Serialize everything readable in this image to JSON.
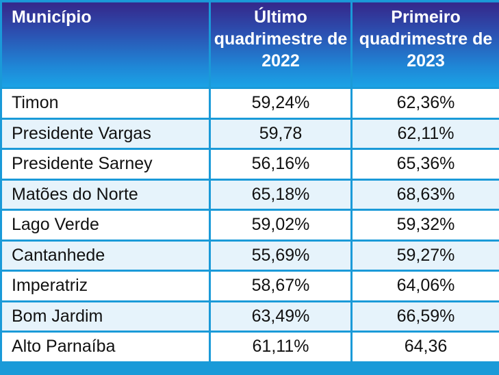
{
  "headers": {
    "municipio": "Município",
    "col1": "Último quadrimestre de 2022",
    "col2": "Primeiro quadrimestre de 2023"
  },
  "rows": [
    {
      "municipio": "Timon",
      "q2022": "59,24%",
      "q2023": "62,36%"
    },
    {
      "municipio": "Presidente Vargas",
      "q2022": "59,78",
      "q2023": "62,11%"
    },
    {
      "municipio": "Presidente Sarney",
      "q2022": "56,16%",
      "q2023": "65,36%"
    },
    {
      "municipio": "Matões do Norte",
      "q2022": "65,18%",
      "q2023": "68,63%"
    },
    {
      "municipio": "Lago Verde",
      "q2022": "59,02%",
      "q2023": "59,32%"
    },
    {
      "municipio": "Cantanhede",
      "q2022": "55,69%",
      "q2023": "59,27%"
    },
    {
      "municipio": "Imperatriz",
      "q2022": "58,67%",
      "q2023": "64,06%"
    },
    {
      "municipio": "Bom Jardim",
      "q2022": "63,49%",
      "q2023": "66,59%"
    },
    {
      "municipio": "Alto Parnaíba",
      "q2022": "61,11%",
      "q2023": "64,36"
    }
  ],
  "colors": {
    "header_top": "#35278a",
    "header_bottom": "#1ba3e6",
    "border": "#1a9ad8",
    "row_alt": "#e6f3fb"
  }
}
